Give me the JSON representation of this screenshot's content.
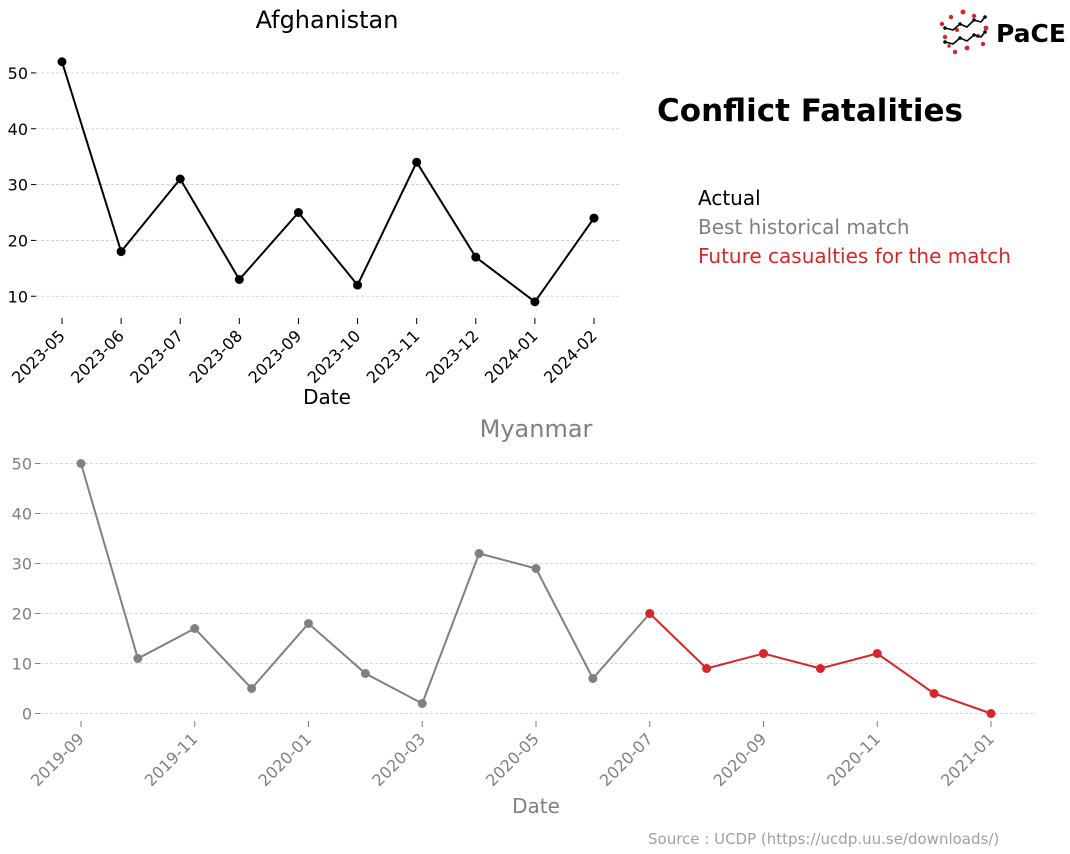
{
  "header": {
    "title": "Conflict Fatalities",
    "logo_text": "PaCE"
  },
  "legend": {
    "actual": "Actual",
    "best_match": "Best historical match",
    "future": "Future casualties for the match",
    "placement": "right",
    "colors": {
      "actual": "#000000",
      "best_match": "#808080",
      "future": "#d62728"
    }
  },
  "source": "Source : UCDP (https://ucdp.uu.se/downloads/)",
  "chart_data": [
    {
      "type": "line",
      "title": "Afghanistan",
      "xlabel": "Date",
      "ylabel": "",
      "grid": true,
      "x": [
        "2023-05",
        "2023-06",
        "2023-07",
        "2023-08",
        "2023-09",
        "2023-10",
        "2023-11",
        "2023-12",
        "2024-01",
        "2024-02"
      ],
      "xticks": [
        "2023-05",
        "2023-06",
        "2023-07",
        "2023-08",
        "2023-09",
        "2023-10",
        "2023-11",
        "2023-12",
        "2024-01",
        "2024-02"
      ],
      "ylim": [
        7,
        55
      ],
      "yticks": [
        10,
        20,
        30,
        40,
        50
      ],
      "series": [
        {
          "name": "Actual",
          "color": "#000000",
          "x": [
            "2023-05",
            "2023-06",
            "2023-07",
            "2023-08",
            "2023-09",
            "2023-10",
            "2023-11",
            "2023-12",
            "2024-01",
            "2024-02"
          ],
          "values": [
            52,
            18,
            31,
            13,
            25,
            12,
            34,
            17,
            9,
            24
          ]
        }
      ]
    },
    {
      "type": "line",
      "title": "Myanmar",
      "xlabel": "Date",
      "ylabel": "",
      "grid": true,
      "x": [
        "2019-09",
        "2019-10",
        "2019-11",
        "2019-12",
        "2020-01",
        "2020-02",
        "2020-03",
        "2020-04",
        "2020-05",
        "2020-06",
        "2020-07",
        "2020-08",
        "2020-09",
        "2020-10",
        "2020-11",
        "2020-12",
        "2021-01"
      ],
      "xticks": [
        "2019-09",
        "2019-11",
        "2020-01",
        "2020-03",
        "2020-05",
        "2020-07",
        "2020-09",
        "2020-11",
        "2021-01"
      ],
      "ylim": [
        -1.5,
        52.5
      ],
      "yticks": [
        0,
        10,
        20,
        30,
        40,
        50
      ],
      "series": [
        {
          "name": "Best historical match",
          "color": "#808080",
          "x": [
            "2019-09",
            "2019-10",
            "2019-11",
            "2019-12",
            "2020-01",
            "2020-02",
            "2020-03",
            "2020-04",
            "2020-05",
            "2020-06",
            "2020-07"
          ],
          "values": [
            50,
            11,
            17,
            5,
            18,
            8,
            2,
            32,
            29,
            7,
            20
          ]
        },
        {
          "name": "Future casualties for the match",
          "color": "#d62728",
          "x": [
            "2020-07",
            "2020-08",
            "2020-09",
            "2020-10",
            "2020-11",
            "2020-12",
            "2021-01"
          ],
          "values": [
            20,
            9,
            12,
            9,
            12,
            4,
            0
          ]
        }
      ]
    }
  ]
}
